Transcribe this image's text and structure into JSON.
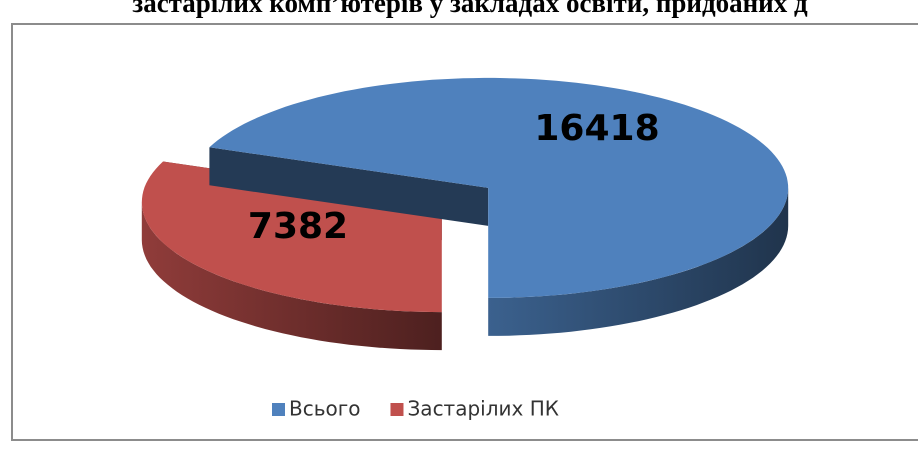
{
  "chart_data": {
    "type": "pie",
    "title": "застарілих комп’ютерів у закладах освіти, придбаних д",
    "categories": [
      "Всього",
      "Застарілих ПК"
    ],
    "values": [
      16418,
      7382
    ],
    "colors": [
      "#4f81bd",
      "#c0504d"
    ],
    "legend": "bottom"
  }
}
